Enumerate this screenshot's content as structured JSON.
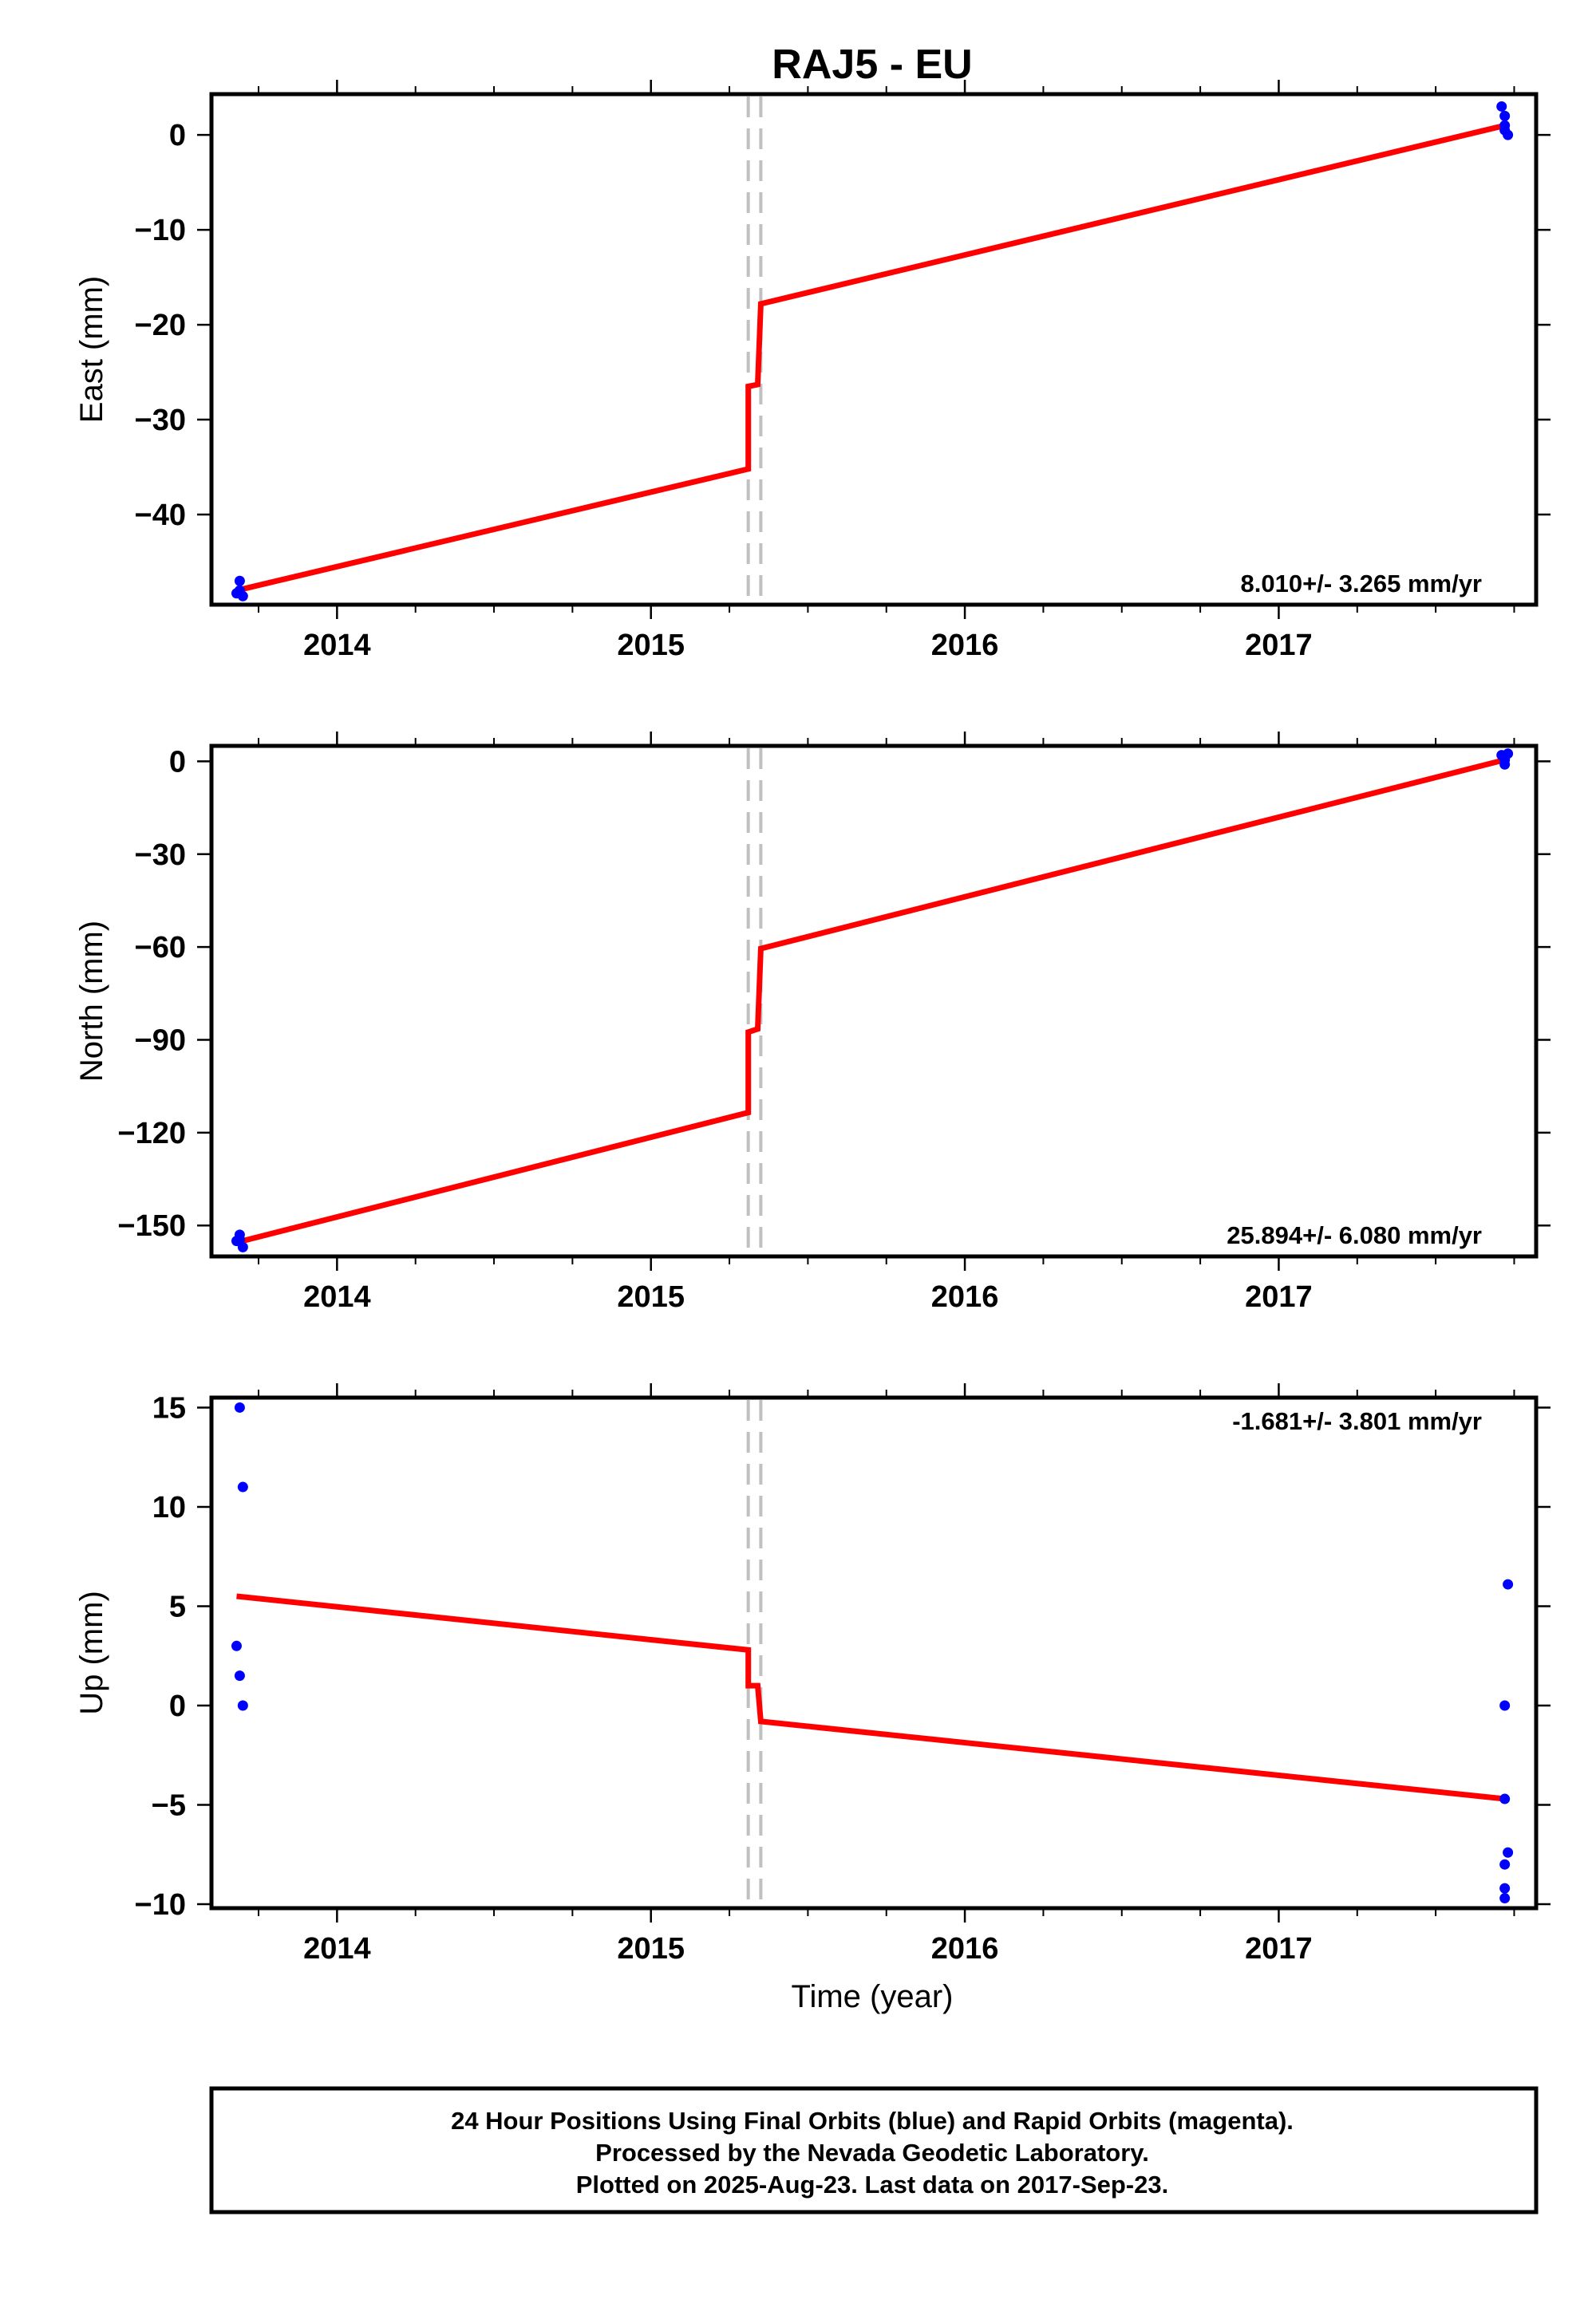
{
  "title": "RAJ5 - EU",
  "xlabel": "Time (year)",
  "footer": {
    "line1": "24 Hour Positions Using Final Orbits (blue) and Rapid Orbits (magenta).",
    "line2": "Processed by the Nevada Geodetic Laboratory.",
    "line3": "Plotted on 2025-Aug-23. Last data on 2017-Sep-23."
  },
  "colors": {
    "data_points": "#0000ff",
    "model_line": "#ff0000",
    "event_lines": "#c0c0c0"
  },
  "chart_data": [
    {
      "type": "scatter",
      "ylabel": "East (mm)",
      "rate_label": "8.010+/- 3.265 mm/yr",
      "rate_position": "bottom-right",
      "xlim": [
        2013.6,
        2017.82
      ],
      "ylim": [
        -49.5,
        4.3
      ],
      "x_ticks": [
        2014,
        2015,
        2016,
        2017
      ],
      "y_ticks": [
        0,
        -10,
        -20,
        -30,
        -40
      ],
      "event_lines_x": [
        2015.31,
        2015.35
      ],
      "model_line": {
        "x": [
          2013.68,
          2015.31,
          2015.31,
          2015.34,
          2015.35,
          2017.72
        ],
        "y": [
          -48.0,
          -35.2,
          -26.5,
          -26.3,
          -17.8,
          1.0
        ]
      },
      "points": {
        "x": [
          2013.69,
          2013.68,
          2013.7,
          2013.69,
          2017.71,
          2017.72,
          2017.72,
          2017.73,
          2017.72
        ],
        "y": [
          -47.0,
          -48.3,
          -48.6,
          -48.0,
          3.0,
          2.0,
          0.5,
          0.0,
          1.0
        ]
      }
    },
    {
      "type": "scatter",
      "ylabel": "North (mm)",
      "rate_label": "25.894+/- 6.080 mm/yr",
      "rate_position": "bottom-right",
      "xlim": [
        2013.6,
        2017.82
      ],
      "ylim": [
        -160,
        5
      ],
      "x_ticks": [
        2014,
        2015,
        2016,
        2017
      ],
      "y_ticks": [
        0,
        -30,
        -60,
        -90,
        -120,
        -150
      ],
      "event_lines_x": [
        2015.31,
        2015.35
      ],
      "model_line": {
        "x": [
          2013.68,
          2015.31,
          2015.31,
          2015.34,
          2015.35,
          2017.72
        ],
        "y": [
          -155.5,
          -113.5,
          -87.5,
          -86.5,
          -60.5,
          0.5
        ]
      },
      "points": {
        "x": [
          2013.69,
          2013.68,
          2013.7,
          2013.69,
          2017.71,
          2017.72,
          2017.72,
          2017.73,
          2017.72
        ],
        "y": [
          -153.0,
          -155.0,
          -157.0,
          -154.5,
          2.0,
          0.5,
          -1.0,
          2.5,
          1.0
        ]
      }
    },
    {
      "type": "scatter",
      "ylabel": "Up (mm)",
      "rate_label": "-1.681+/- 3.801 mm/yr",
      "rate_position": "top-right",
      "xlim": [
        2013.6,
        2017.82
      ],
      "ylim": [
        -10.2,
        15.5
      ],
      "x_ticks": [
        2014,
        2015,
        2016,
        2017
      ],
      "y_ticks": [
        15,
        10,
        5,
        0,
        -5,
        -10
      ],
      "event_lines_x": [
        2015.31,
        2015.35
      ],
      "model_line": {
        "x": [
          2013.68,
          2015.31,
          2015.31,
          2015.34,
          2015.35,
          2017.72
        ],
        "y": [
          5.5,
          2.8,
          1.0,
          1.0,
          -0.8,
          -4.7
        ]
      },
      "points": {
        "x": [
          2013.69,
          2013.7,
          2013.68,
          2013.69,
          2013.7,
          2017.73,
          2017.72,
          2017.72,
          2017.73,
          2017.72,
          2017.72,
          2017.72
        ],
        "y": [
          15.0,
          11.0,
          3.0,
          1.5,
          0.0,
          6.1,
          0.0,
          -4.7,
          -7.4,
          -8.0,
          -9.2,
          -9.7
        ]
      }
    }
  ]
}
